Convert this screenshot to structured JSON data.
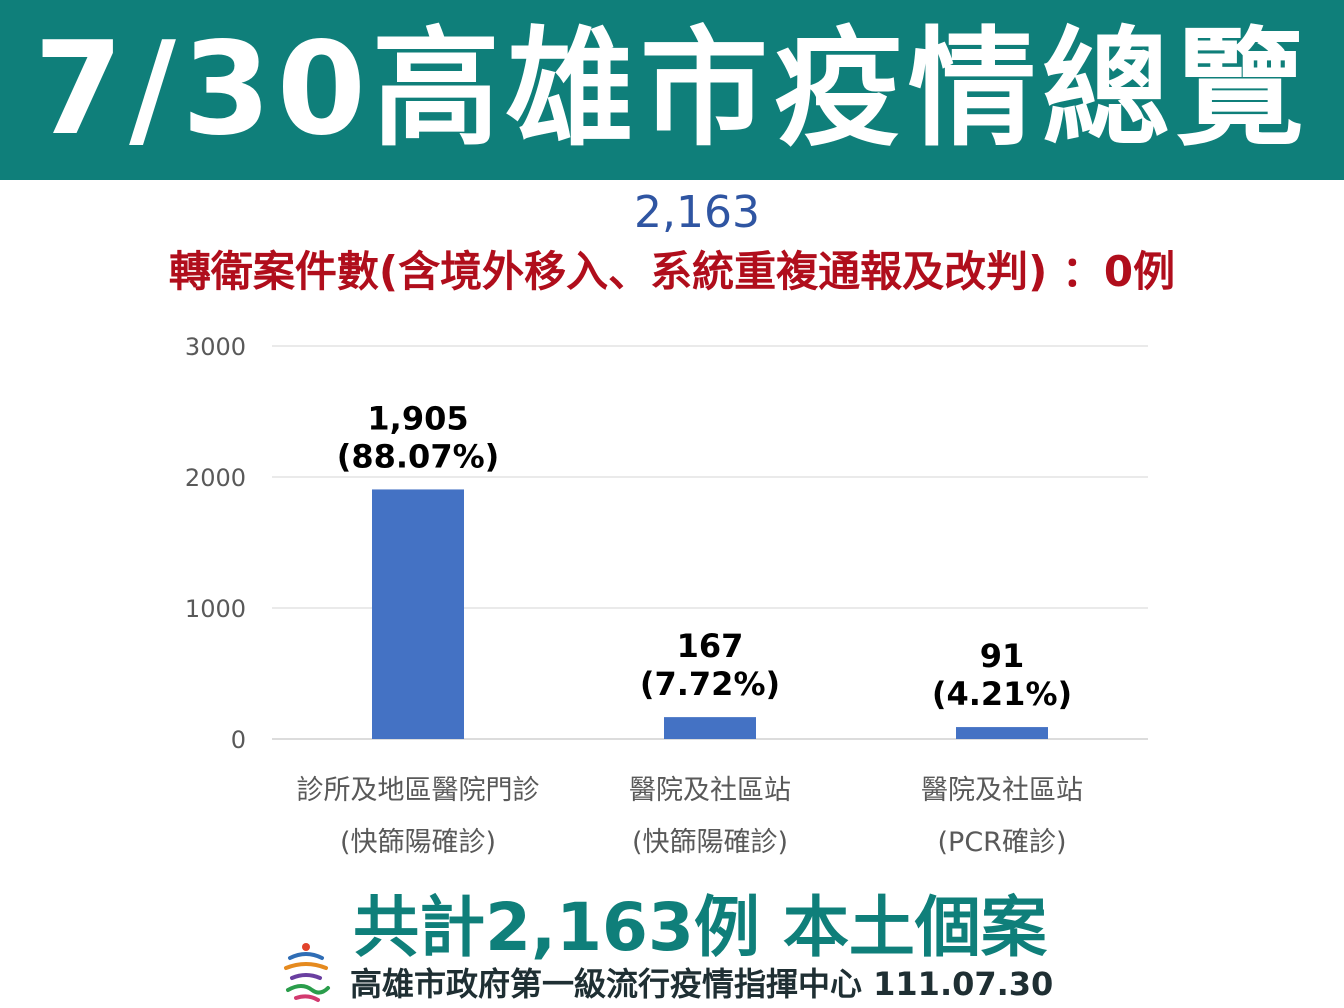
{
  "banner": {
    "title": "7/30高雄市疫情總覽"
  },
  "subtotal": "2,163",
  "transfer_note": "轉衛案件數(含境外移入、系統重複通報及改判) ：0例",
  "footer": {
    "total": "共計2,163例 本土個案",
    "org": "高雄市政府第一級流行疫情指揮中心 111.07.30"
  },
  "colors": {
    "banner": "#0f7f7a",
    "bar": "#4472c4",
    "red_text": "#b00e1c",
    "blue_text": "#2f55a2"
  },
  "chart_data": {
    "type": "bar",
    "categories": [
      [
        "診所及地區醫院門診",
        "(快篩陽確診)"
      ],
      [
        "醫院及社區站",
        "(快篩陽確診)"
      ],
      [
        "醫院及社區站",
        "(PCR確診)"
      ]
    ],
    "values": [
      1905,
      167,
      91
    ],
    "data_labels": [
      [
        "1,905",
        "(88.07%)"
      ],
      [
        "167",
        "(7.72%)"
      ],
      [
        "91",
        "(4.21%)"
      ]
    ],
    "yticks": [
      0,
      1000,
      2000,
      3000
    ],
    "ylim": [
      0,
      3000
    ],
    "grid": true,
    "legend": "none"
  }
}
